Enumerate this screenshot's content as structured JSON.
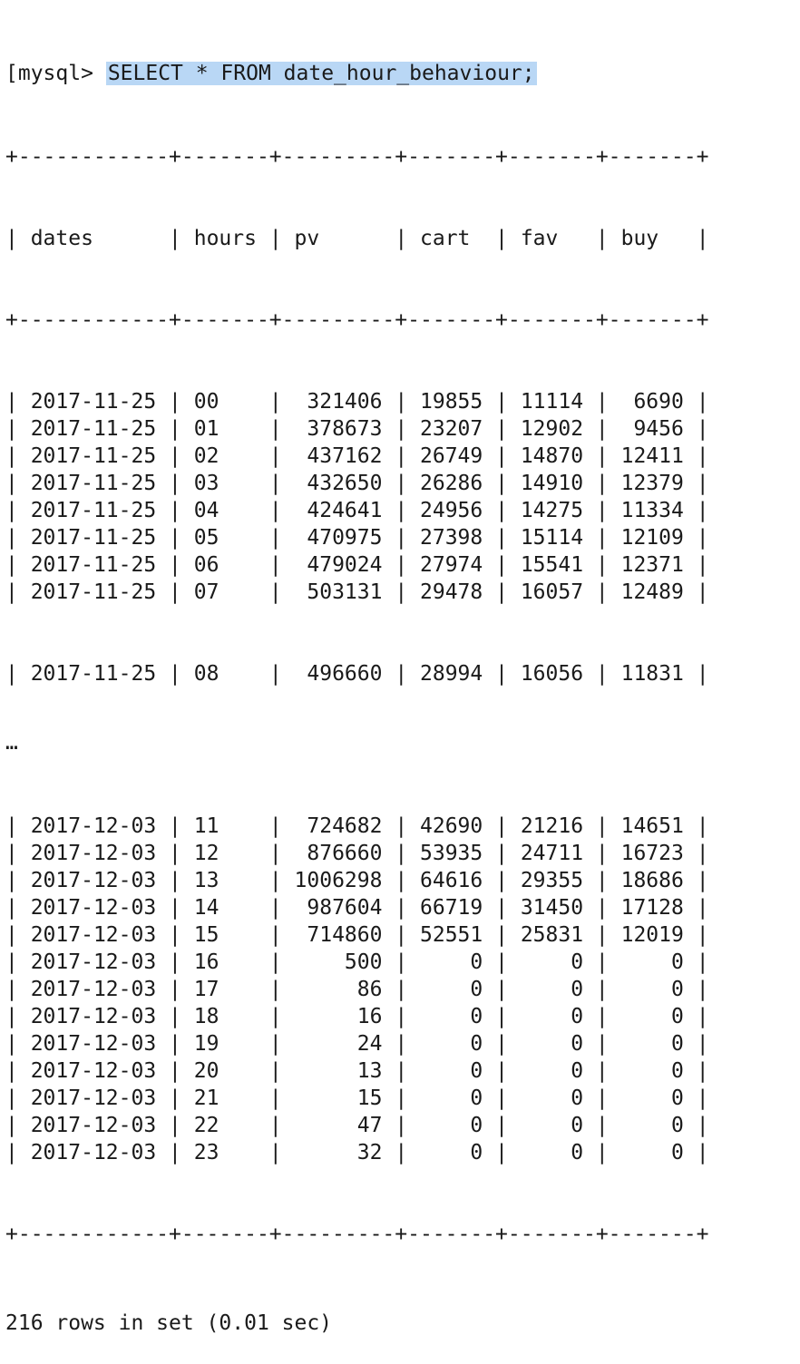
{
  "prompt": "mysql>",
  "command": "SELECT * FROM date_hour_behaviour;",
  "columns": [
    "dates",
    "hours",
    "pv",
    "cart",
    "fav",
    "buy"
  ],
  "rows_top": [
    [
      "2017-11-25",
      "00",
      "321406",
      "19855",
      "11114",
      "6690"
    ],
    [
      "2017-11-25",
      "01",
      "378673",
      "23207",
      "12902",
      "9456"
    ],
    [
      "2017-11-25",
      "02",
      "437162",
      "26749",
      "14870",
      "12411"
    ],
    [
      "2017-11-25",
      "03",
      "432650",
      "26286",
      "14910",
      "12379"
    ],
    [
      "2017-11-25",
      "04",
      "424641",
      "24956",
      "14275",
      "11334"
    ],
    [
      "2017-11-25",
      "05",
      "470975",
      "27398",
      "15114",
      "12109"
    ],
    [
      "2017-11-25",
      "06",
      "479024",
      "27974",
      "15541",
      "12371"
    ],
    [
      "2017-11-25",
      "07",
      "503131",
      "29478",
      "16057",
      "12489"
    ]
  ],
  "row_partial": [
    "2017-11-25",
    "08",
    "496660",
    "28994",
    "16056",
    "11831"
  ],
  "ellipsis": "…",
  "rows_bottom": [
    [
      "2017-12-03",
      "11",
      "724682",
      "42690",
      "21216",
      "14651"
    ],
    [
      "2017-12-03",
      "12",
      "876660",
      "53935",
      "24711",
      "16723"
    ],
    [
      "2017-12-03",
      "13",
      "1006298",
      "64616",
      "29355",
      "18686"
    ],
    [
      "2017-12-03",
      "14",
      "987604",
      "66719",
      "31450",
      "17128"
    ],
    [
      "2017-12-03",
      "15",
      "714860",
      "52551",
      "25831",
      "12019"
    ],
    [
      "2017-12-03",
      "16",
      "500",
      "0",
      "0",
      "0"
    ],
    [
      "2017-12-03",
      "17",
      "86",
      "0",
      "0",
      "0"
    ],
    [
      "2017-12-03",
      "18",
      "16",
      "0",
      "0",
      "0"
    ],
    [
      "2017-12-03",
      "19",
      "24",
      "0",
      "0",
      "0"
    ],
    [
      "2017-12-03",
      "20",
      "13",
      "0",
      "0",
      "0"
    ],
    [
      "2017-12-03",
      "21",
      "15",
      "0",
      "0",
      "0"
    ],
    [
      "2017-12-03",
      "22",
      "47",
      "0",
      "0",
      "0"
    ],
    [
      "2017-12-03",
      "23",
      "32",
      "0",
      "0",
      "0"
    ]
  ],
  "footer": "216 rows in set (0.01 sec)",
  "colors": {
    "selection": "#b9d7f5",
    "text": "#1a1a1a",
    "background": "#ffffff"
  }
}
